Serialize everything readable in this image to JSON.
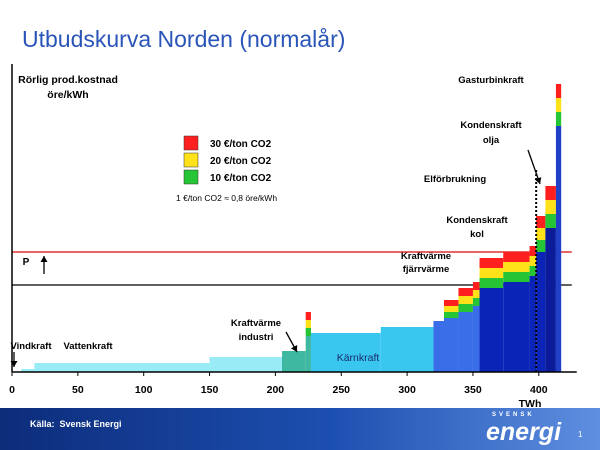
{
  "slide": {
    "title": "Utbudskurva Norden (normalår)",
    "source_label": "Källa:",
    "source_text": "Svensk Energi",
    "logo_small": "SVENSK",
    "logo_main": "energi",
    "page_number": "1"
  },
  "colors": {
    "title": "#2a55b8",
    "vindkraft": "#99ecf6",
    "vattenkraft": "#99ecf6",
    "industri": "#3fb8a2",
    "karnkraft": "#39c7f0",
    "kraftvarme": "#3a6ee8",
    "kondens_kol": "#0b24b8",
    "olja": "#0b1b9a",
    "gasturbin": "#2040c8",
    "co2_30": "#ff1f1f",
    "co2_20": "#ffe11a",
    "co2_10": "#25c535",
    "demand_line": "#e23030",
    "price_line": "#000000"
  },
  "chart_data": {
    "type": "area",
    "title": "Utbudskurva Norden (normalår)",
    "ylabel": "Rörlig prod.kostnad öre/kWh",
    "xlabel": "TWh",
    "x_ticks": [
      0,
      50,
      100,
      150,
      200,
      250,
      300,
      350,
      400
    ],
    "xlim": [
      0,
      425
    ],
    "ylim": [
      0,
      100
    ],
    "grid": false,
    "legend": {
      "position": "top-center",
      "items": [
        {
          "label": "30  €/ton CO2",
          "color": "#ff1f1f"
        },
        {
          "label": "20  €/ton CO2",
          "color": "#ffe11a"
        },
        {
          "label": "10  €/ton CO2",
          "color": "#25c535"
        }
      ],
      "note": "1 €/ton CO2 ≈ 0,8 öre/kWh"
    },
    "supply_segments": [
      {
        "name": "Vindkraft",
        "x0": 7,
        "x1": 17,
        "base": 1,
        "co2": 0
      },
      {
        "name": "Vattenkraft",
        "x0": 17,
        "x1": 150,
        "base": 3,
        "co2": 0
      },
      {
        "name": "Vattenkraft",
        "x0": 150,
        "x1": 205,
        "base": 5,
        "co2": 0
      },
      {
        "name": "Kraftvärme industri",
        "x0": 205,
        "x1": 223,
        "base": 7,
        "co2": 0
      },
      {
        "name": "Kraftvärme industri",
        "x0": 223,
        "x1": 227,
        "base": 12,
        "co2": 8
      },
      {
        "name": "Kärnkraft",
        "x0": 227,
        "x1": 280,
        "base": 13,
        "co2": 0
      },
      {
        "name": "Kärnkraft",
        "x0": 280,
        "x1": 320,
        "base": 15,
        "co2": 0
      },
      {
        "name": "Kraftvärme fjärrvärme",
        "x0": 320,
        "x1": 328,
        "base": 17,
        "co2": 0
      },
      {
        "name": "Kraftvärme fjärrvärme",
        "x0": 328,
        "x1": 339,
        "base": 18,
        "co2": 6
      },
      {
        "name": "Kraftvärme fjärrvärme",
        "x0": 339,
        "x1": 350,
        "base": 20,
        "co2": 8
      },
      {
        "name": "Kraftvärme fjärrvärme",
        "x0": 350,
        "x1": 355,
        "base": 22,
        "co2": 8
      },
      {
        "name": "Kondenskraft kol",
        "x0": 355,
        "x1": 373,
        "base": 28,
        "co2": 10
      },
      {
        "name": "Kondenskraft kol",
        "x0": 373,
        "x1": 393,
        "base": 30,
        "co2": 10
      },
      {
        "name": "Kondenskraft kol",
        "x0": 393,
        "x1": 398,
        "base": 32,
        "co2": 10
      },
      {
        "name": "Kondenskraft kol",
        "x0": 398,
        "x1": 405,
        "base": 40,
        "co2": 12
      },
      {
        "name": "Kondenskraft olja",
        "x0": 405,
        "x1": 413,
        "base": 48,
        "co2": 14
      },
      {
        "name": "Gasturbinkraft",
        "x0": 413,
        "x1": 417,
        "base": 82,
        "co2": 14
      }
    ],
    "reference_lines": {
      "demand_price": 40,
      "clearing_price": 29,
      "demand_x": 398
    },
    "annotations": [
      {
        "text": "Vindkraft"
      },
      {
        "text": "Vattenkraft"
      },
      {
        "text": "Kraftvärme industri"
      },
      {
        "text": "Kärnkraft"
      },
      {
        "text": "Kraftvärme fjärrvärme"
      },
      {
        "text": "Kondenskraft kol"
      },
      {
        "text": "Elförbrukning"
      },
      {
        "text": "Kondenskraft olja"
      },
      {
        "text": "Gasturbinkraft"
      },
      {
        "text": "P"
      }
    ]
  }
}
